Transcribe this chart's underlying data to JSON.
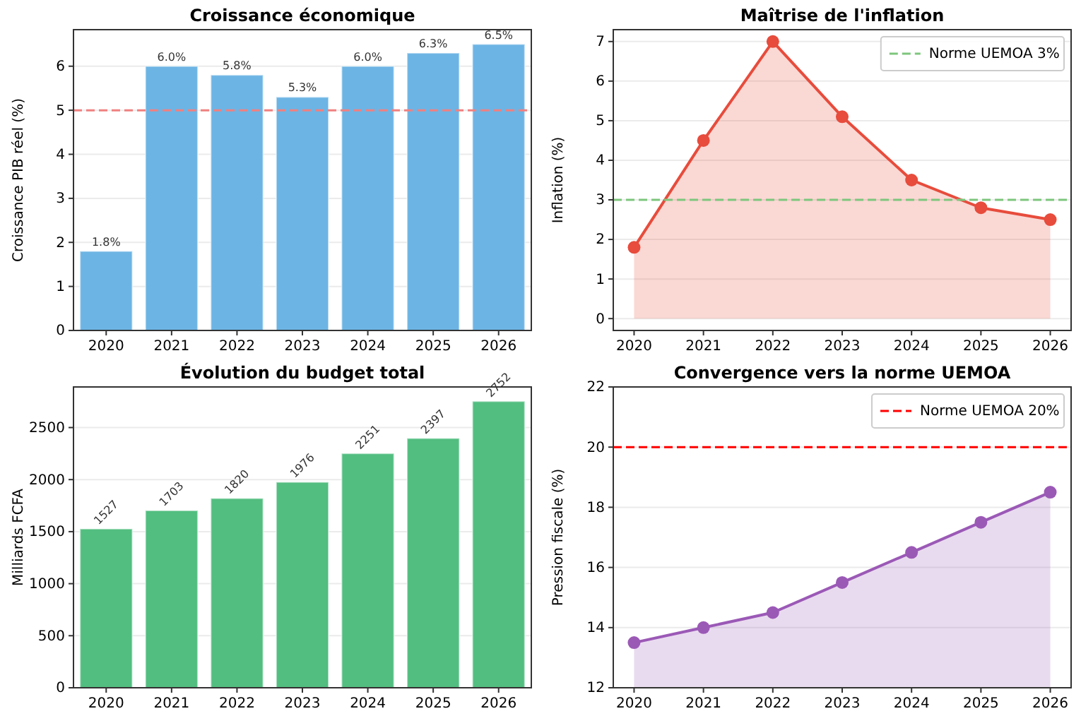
{
  "chart_data": [
    {
      "type": "bar",
      "title": "Croissance économique",
      "ylabel": "Croissance PIB réel (%)",
      "categories": [
        "2020",
        "2021",
        "2022",
        "2023",
        "2024",
        "2025",
        "2026"
      ],
      "values": [
        1.8,
        6.0,
        5.8,
        5.3,
        6.0,
        6.3,
        6.5
      ],
      "value_labels": [
        "1.8%",
        "6.0%",
        "5.8%",
        "5.3%",
        "6.0%",
        "6.3%",
        "6.5%"
      ],
      "color": "#6cb4e4",
      "ylim": [
        0,
        6.83
      ],
      "yticks": [
        0,
        1,
        2,
        3,
        4,
        5,
        6
      ],
      "grid": "y",
      "ref_lines": [
        {
          "axis": "y",
          "value": 5,
          "color": "#f08080",
          "line_style": "dashed"
        }
      ]
    },
    {
      "type": "area",
      "title": "Maîtrise de l'inflation",
      "ylabel": "Inflation (%)",
      "x": [
        2020,
        2021,
        2022,
        2023,
        2024,
        2025,
        2026
      ],
      "series": [
        {
          "color": "#e74c3c",
          "values": [
            1.8,
            4.5,
            7.0,
            5.1,
            3.5,
            2.8,
            2.5
          ]
        }
      ],
      "marker": "circle",
      "xlim": [
        2019.7,
        2026.3
      ],
      "xticks": [
        2020,
        2021,
        2022,
        2023,
        2024,
        2025,
        2026
      ],
      "ylim": [
        -0.3,
        7.3
      ],
      "yticks": [
        0,
        1,
        2,
        3,
        4,
        5,
        6,
        7
      ],
      "grid": "y",
      "legend": "top right",
      "ref_lines": [
        {
          "axis": "y",
          "value": 3,
          "label": "Norme UEMOA 3%",
          "color": "#7dc67d",
          "line_style": "dashed"
        }
      ]
    },
    {
      "type": "bar",
      "title": "Évolution du budget total",
      "ylabel": "Milliards FCFA",
      "categories": [
        "2020",
        "2021",
        "2022",
        "2023",
        "2024",
        "2025",
        "2026"
      ],
      "values": [
        1527,
        1703,
        1820,
        1976,
        2251,
        2397,
        2752
      ],
      "data_labels": true,
      "color": "#52be80",
      "ylim": [
        0,
        2890
      ],
      "yticks": [
        0,
        500,
        1000,
        1500,
        2000,
        2500
      ],
      "grid": "y"
    },
    {
      "type": "area",
      "title": "Convergence vers la norme UEMOA",
      "ylabel": "Pression fiscale (%)",
      "x": [
        2020,
        2021,
        2022,
        2023,
        2024,
        2025,
        2026
      ],
      "series": [
        {
          "color": "#9b59b6",
          "values": [
            13.5,
            14.0,
            14.5,
            15.5,
            16.5,
            17.5,
            18.5
          ]
        }
      ],
      "marker": "circle",
      "xlim": [
        2019.7,
        2026.3
      ],
      "xticks": [
        2020,
        2021,
        2022,
        2023,
        2024,
        2025,
        2026
      ],
      "ylim": [
        12,
        22
      ],
      "yticks": [
        12,
        14,
        16,
        18,
        20,
        22
      ],
      "grid": "y",
      "legend": "top right",
      "ref_lines": [
        {
          "axis": "y",
          "value": 20,
          "label": "Norme UEMOA 20%",
          "color": "#ff0000",
          "line_style": "dashed"
        }
      ]
    }
  ]
}
